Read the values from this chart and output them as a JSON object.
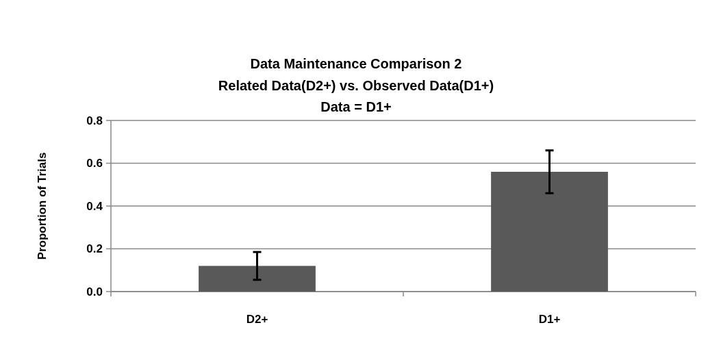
{
  "chart_data": {
    "type": "bar",
    "title": "Data Maintenance Comparison 2\nRelated Data(D2+) vs. Observed Data(D1+)\nData = D1+",
    "ylabel": "Proportion of Trials",
    "categories": [
      "D2+",
      "D1+"
    ],
    "values": [
      0.12,
      0.56
    ],
    "errors": [
      0.065,
      0.1
    ],
    "color": "#595959",
    "ylim": [
      0,
      0.8
    ],
    "yticks": [
      {
        "value": 0,
        "label": "0.0"
      },
      {
        "value": 0.2,
        "label": "0.2"
      },
      {
        "value": 0.4,
        "label": "0.4"
      },
      {
        "value": 0.6,
        "label": "0.6"
      },
      {
        "value": 0.8,
        "label": "0.8"
      }
    ],
    "grid": "y"
  }
}
